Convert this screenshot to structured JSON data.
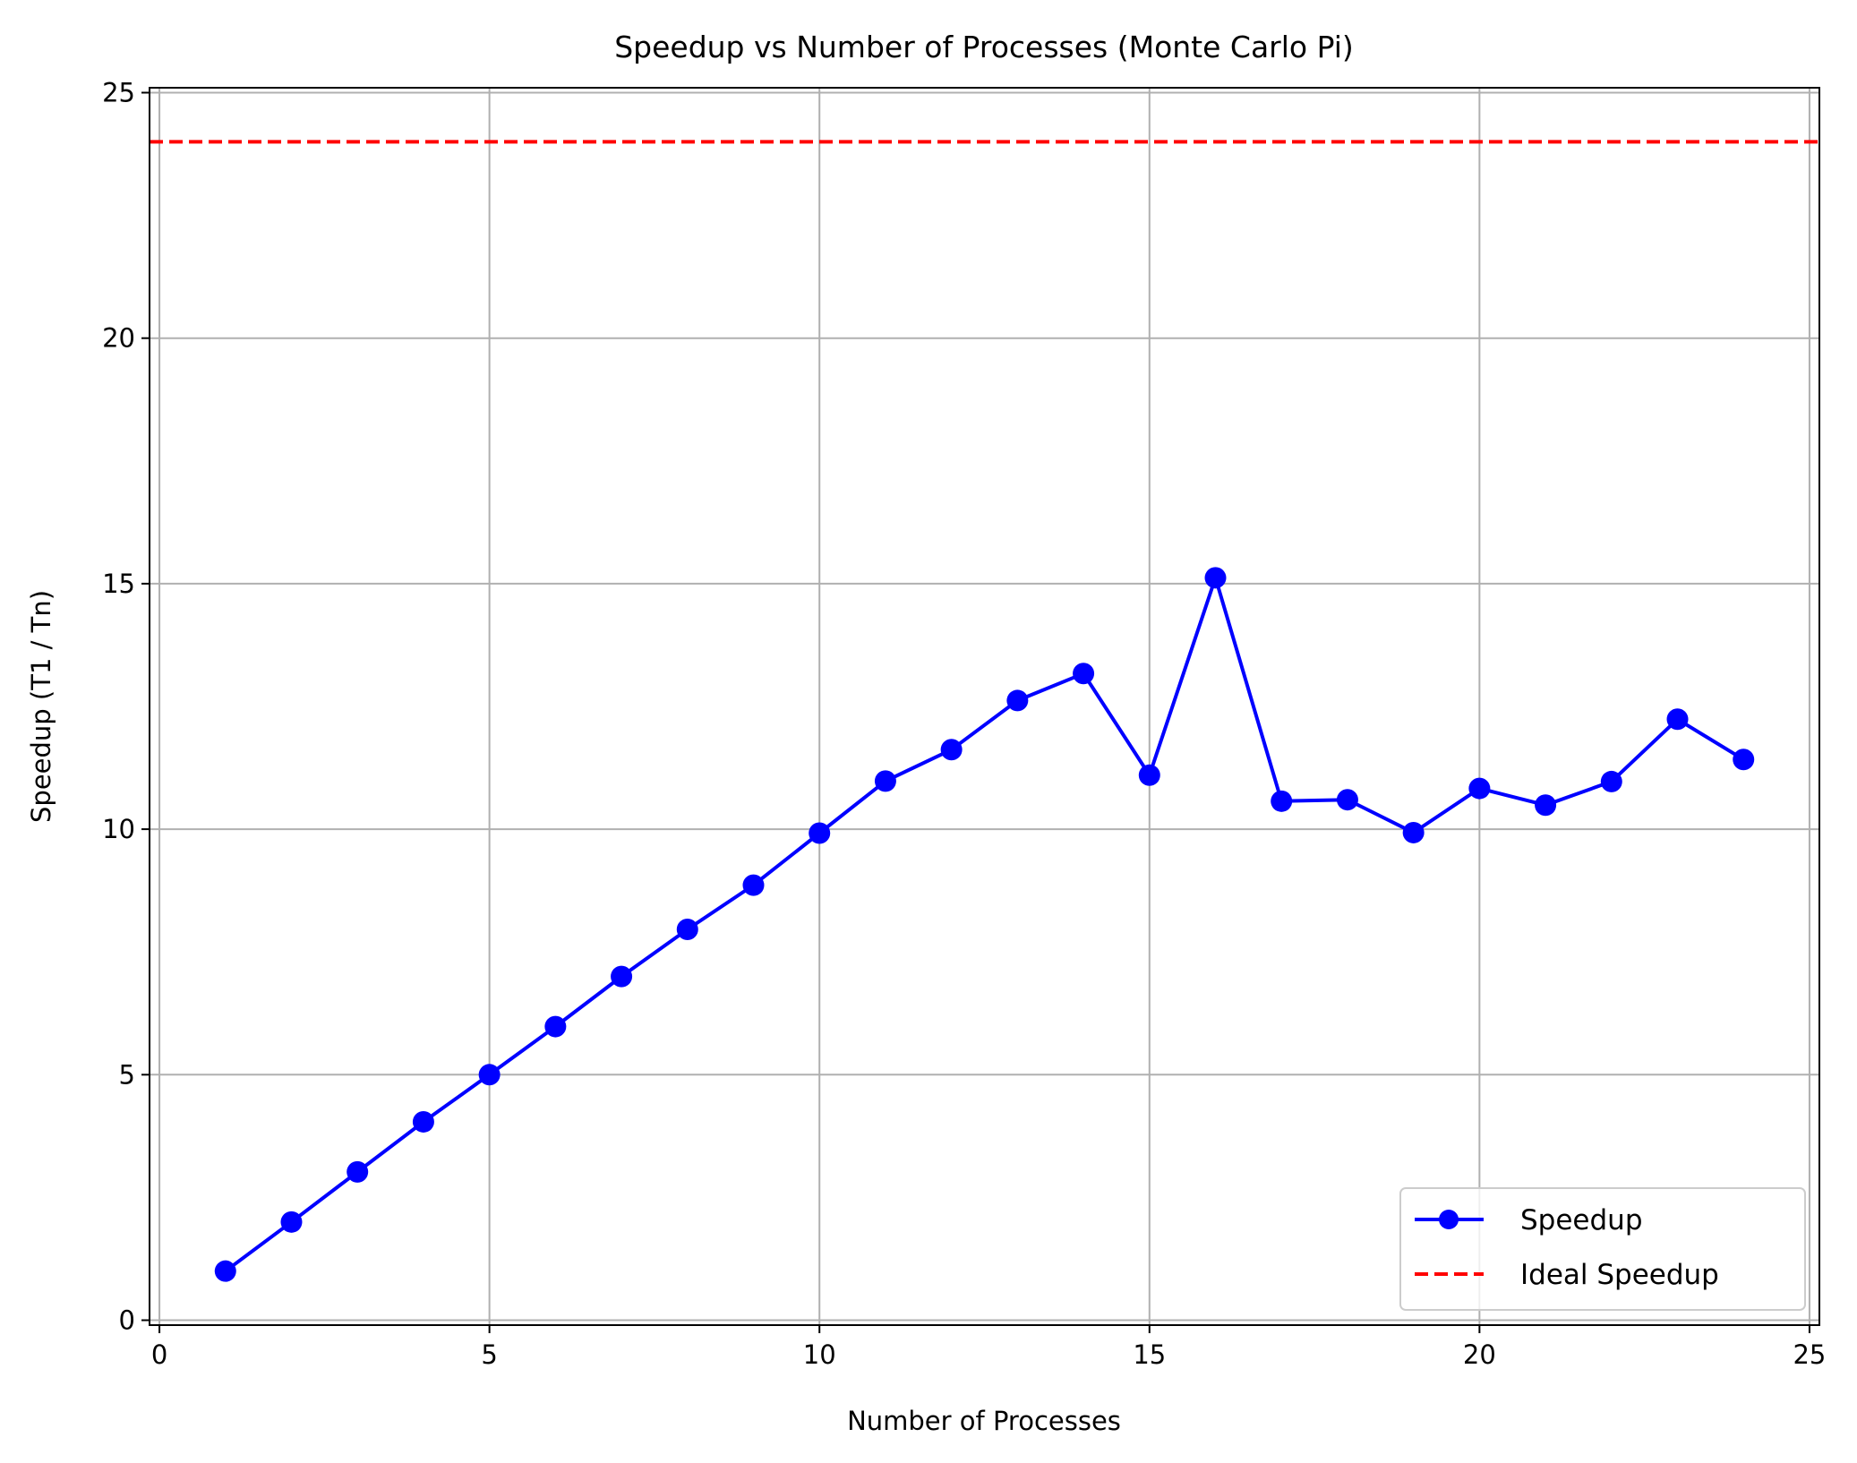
{
  "chart_data": {
    "type": "line",
    "title": "Speedup vs Number of Processes (Monte Carlo Pi)",
    "xlabel": "Number of Processes",
    "ylabel": "Speedup (T1 / Tn)",
    "xlim": [
      -0.15,
      25.15
    ],
    "ylim": [
      -0.1,
      25.1
    ],
    "xticks": [
      0,
      5,
      10,
      15,
      20,
      25
    ],
    "yticks": [
      0,
      5,
      10,
      15,
      20,
      25
    ],
    "xtick_labels": [
      "0",
      "5",
      "10",
      "15",
      "20",
      "25"
    ],
    "ytick_labels": [
      "0",
      "5",
      "10",
      "15",
      "20",
      "25"
    ],
    "grid": true,
    "legend_position": "lower-right",
    "series": [
      {
        "name": "Speedup",
        "color": "#0000ff",
        "style": "solid",
        "marker": "circle",
        "x": [
          1,
          2,
          3,
          4,
          5,
          6,
          7,
          8,
          9,
          10,
          11,
          12,
          13,
          14,
          15,
          16,
          17,
          18,
          19,
          20,
          21,
          22,
          23,
          24
        ],
        "y": [
          1.0,
          2.0,
          3.02,
          4.04,
          5.0,
          5.98,
          7.0,
          7.96,
          8.86,
          9.92,
          10.98,
          11.62,
          12.62,
          13.17,
          11.1,
          15.12,
          10.57,
          10.6,
          9.93,
          10.83,
          10.49,
          10.97,
          12.24,
          11.42
        ]
      },
      {
        "name": "Ideal Speedup",
        "color": "#ff0000",
        "style": "dashed",
        "y": 24
      }
    ]
  }
}
